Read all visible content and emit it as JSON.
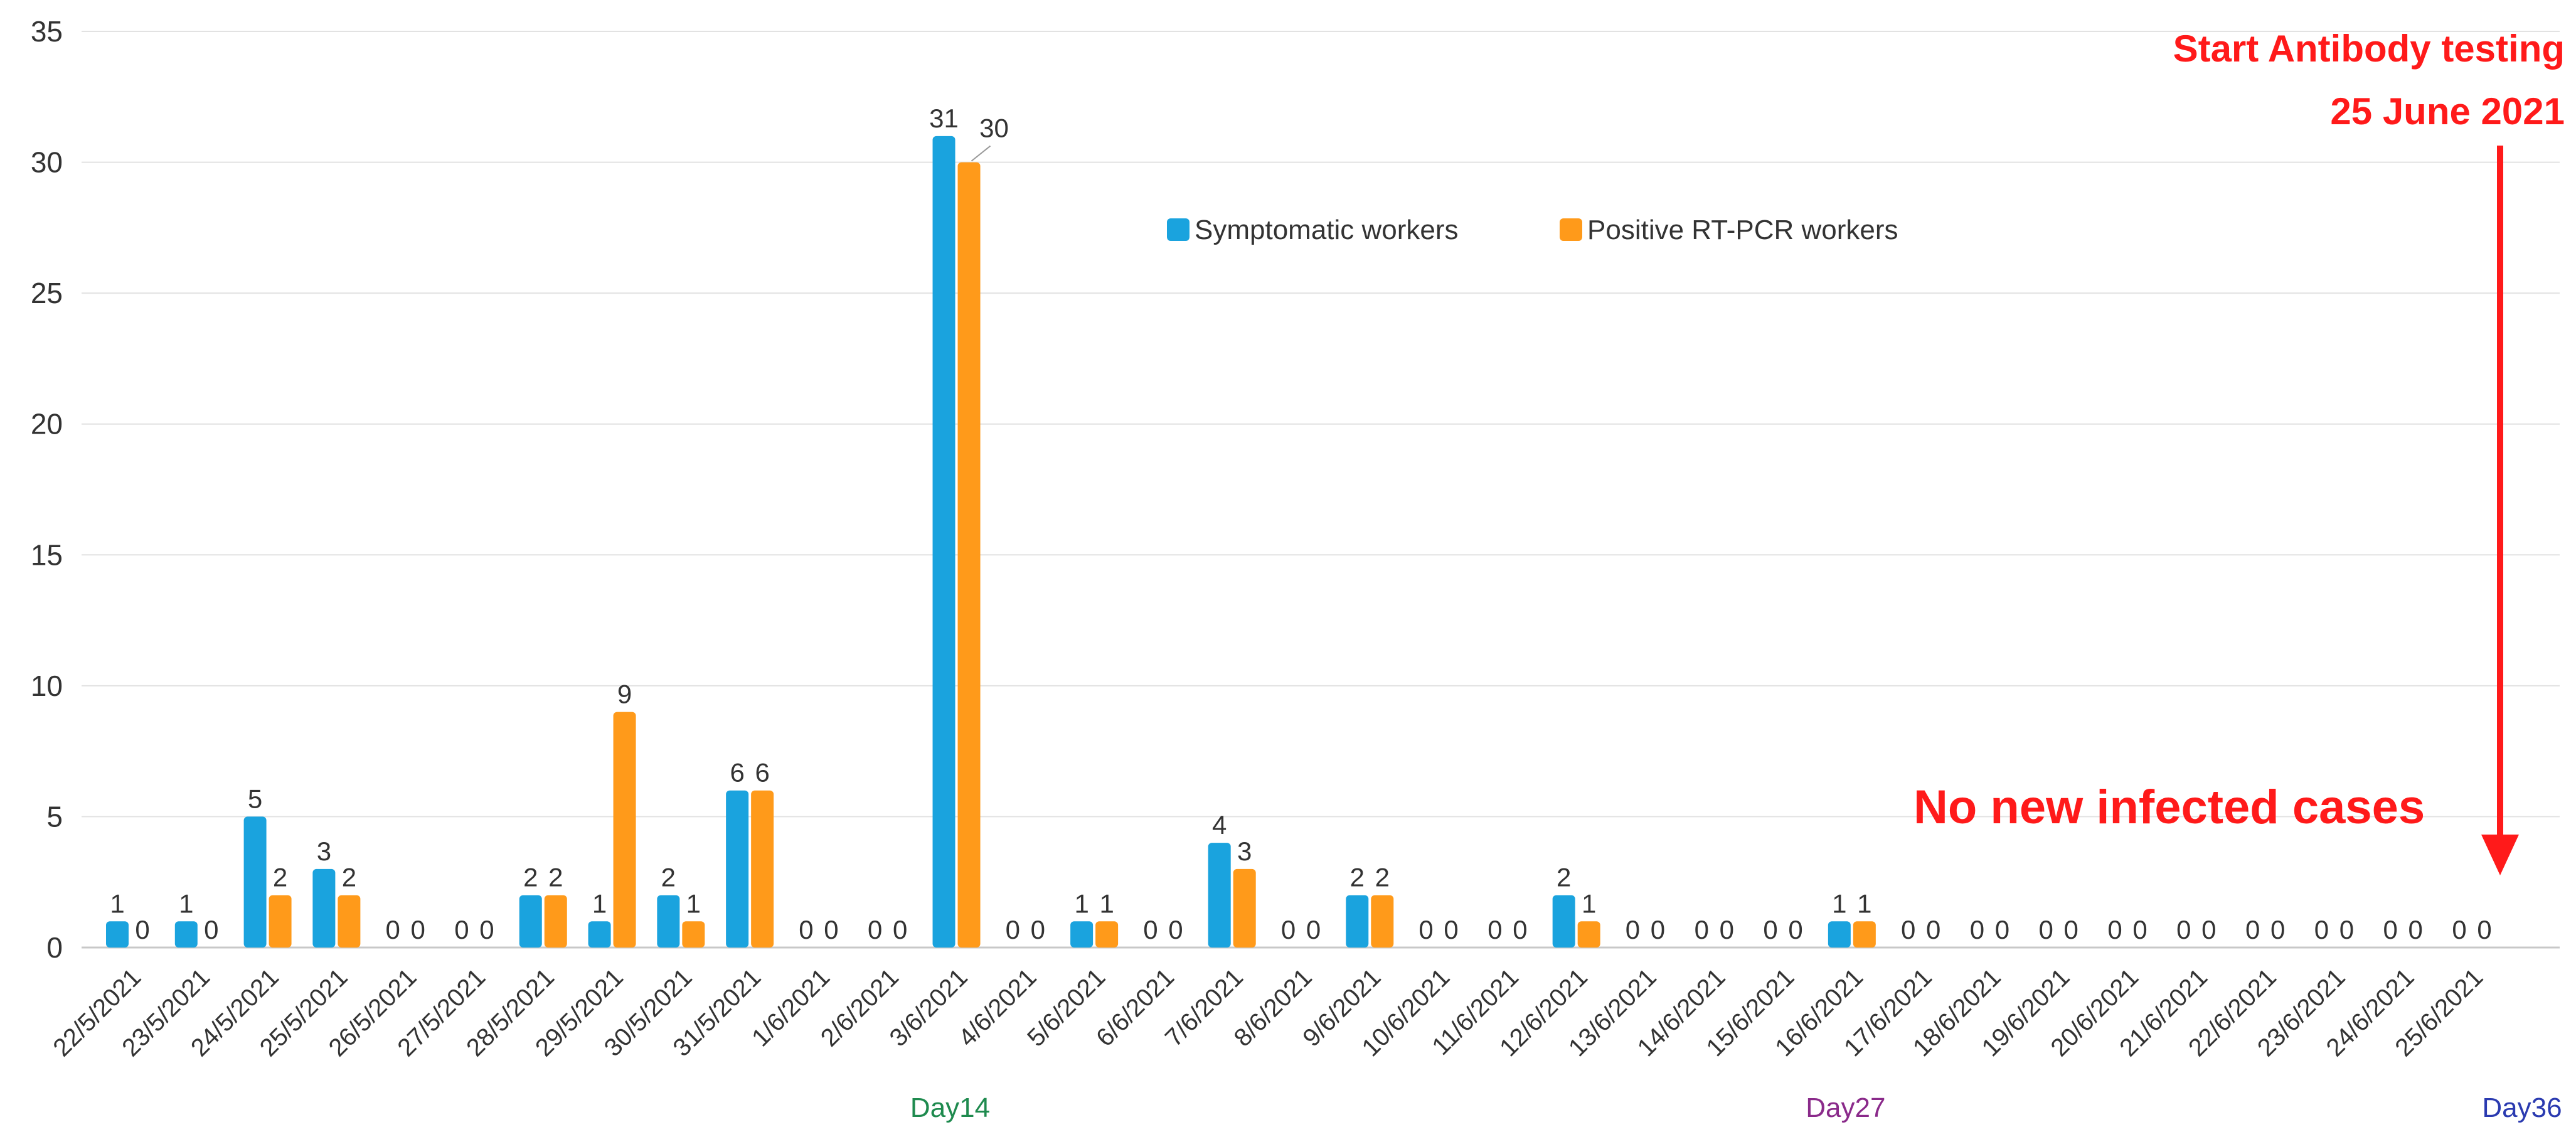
{
  "chart_data": {
    "type": "bar",
    "title": "",
    "xlabel": "",
    "ylabel": "",
    "ylim": [
      0,
      35
    ],
    "yticks": [
      0,
      5,
      10,
      15,
      20,
      25,
      30,
      35
    ],
    "grid": true,
    "legend_position": "top-center",
    "categories": [
      "22/5/2021",
      "23/5/2021",
      "24/5/2021",
      "25/5/2021",
      "26/5/2021",
      "27/5/2021",
      "28/5/2021",
      "29/5/2021",
      "30/5/2021",
      "31/5/2021",
      "1/6/2021",
      "2/6/2021",
      "3/6/2021",
      "4/6/2021",
      "5/6/2021",
      "6/6/2021",
      "7/6/2021",
      "8/6/2021",
      "9/6/2021",
      "10/6/2021",
      "11/6/2021",
      "12/6/2021",
      "13/6/2021",
      "14/6/2021",
      "15/6/2021",
      "16/6/2021",
      "17/6/2021",
      "18/6/2021",
      "19/6/2021",
      "20/6/2021",
      "21/6/2021",
      "22/6/2021",
      "23/6/2021",
      "24/6/2021",
      "25/6/2021"
    ],
    "series": [
      {
        "name": "Symptomatic workers",
        "color": "#1aa3de",
        "values": [
          1,
          1,
          5,
          3,
          0,
          0,
          2,
          1,
          2,
          6,
          0,
          0,
          31,
          0,
          1,
          0,
          4,
          0,
          2,
          0,
          0,
          2,
          0,
          0,
          0,
          1,
          0,
          0,
          0,
          0,
          0,
          0,
          0,
          0,
          0
        ]
      },
      {
        "name": "Positive RT-PCR workers",
        "color": "#ff9a1a",
        "values": [
          0,
          0,
          2,
          2,
          0,
          0,
          2,
          9,
          1,
          6,
          0,
          0,
          30,
          0,
          1,
          0,
          3,
          0,
          2,
          0,
          0,
          1,
          0,
          0,
          0,
          1,
          0,
          0,
          0,
          0,
          0,
          0,
          0,
          0,
          0
        ]
      }
    ],
    "highlighted_categories": [
      {
        "category": "3/6/2021",
        "color": "#2e9a5e",
        "day_label": "Day14",
        "day_color": "#1e8a4e"
      },
      {
        "category": "16/6/2021",
        "color": "#b04aa8",
        "day_label": "Day27",
        "day_color": "#8a2a8a"
      },
      {
        "category": "25/6/2021",
        "color": "#4a6ad0",
        "day_label": "Day36",
        "day_color": "#2a3ab0"
      }
    ],
    "annotations": {
      "start_line1": "Start Antibody testing",
      "start_line2": "25 June 2021",
      "no_new_cases": "No new infected cases",
      "arrow_color": "#ff1a1a"
    }
  }
}
